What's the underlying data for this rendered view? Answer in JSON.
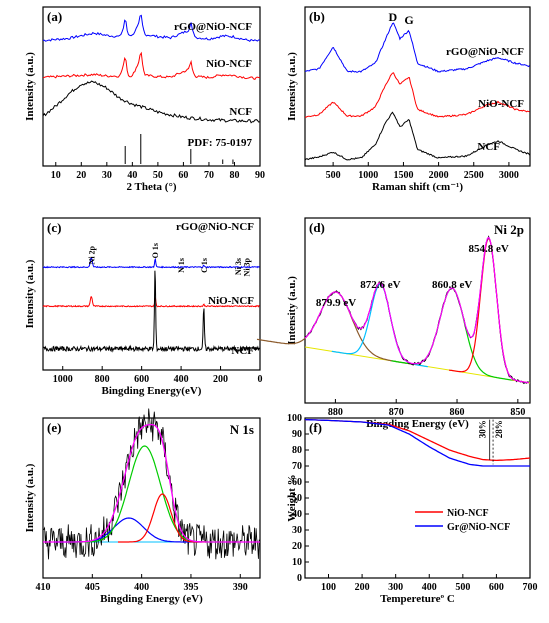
{
  "chart_data": [
    {
      "type": "line",
      "panel_label": "(a)",
      "xlabel": "2 Theta (°)",
      "ylabel": "Intensity (a.u.)",
      "xlim": [
        5,
        90
      ],
      "xticks": [
        "10",
        "20",
        "30",
        "40",
        "50",
        "60",
        "70",
        "80",
        "90"
      ],
      "series": [
        {
          "name": "rGO@NiO-NCF",
          "color": "#0000ff",
          "x": [
            5,
            15,
            25,
            30,
            35,
            37.2,
            38.5,
            40,
            43.3,
            45,
            50,
            55,
            62.9,
            65,
            70,
            75.4,
            79.4,
            85,
            90
          ],
          "y": [
            0.05,
            0.12,
            0.3,
            0.22,
            0.18,
            0.55,
            0.25,
            0.22,
            0.7,
            0.25,
            0.18,
            0.14,
            0.42,
            0.15,
            0.1,
            0.2,
            0.18,
            0.06,
            0.03
          ]
        },
        {
          "name": "NiO-NCF",
          "color": "#ff0000",
          "x": [
            5,
            15,
            25,
            30,
            35,
            37.2,
            38.5,
            40,
            43.3,
            45,
            50,
            55,
            62.9,
            65,
            70,
            75.4,
            79.4,
            85,
            90
          ],
          "y": [
            0.05,
            0.1,
            0.15,
            0.1,
            0.1,
            0.55,
            0.12,
            0.1,
            0.7,
            0.12,
            0.08,
            0.06,
            0.35,
            0.08,
            0.05,
            0.14,
            0.12,
            0.04,
            0.02
          ]
        },
        {
          "name": "NCF",
          "color": "#000000",
          "x": [
            5,
            10,
            15,
            20,
            25,
            30,
            35,
            40,
            45,
            50,
            55,
            60,
            70,
            80,
            90
          ],
          "y": [
            0.15,
            0.4,
            0.7,
            0.95,
            1.0,
            0.85,
            0.6,
            0.45,
            0.35,
            0.25,
            0.18,
            0.12,
            0.06,
            0.03,
            0.02
          ]
        }
      ],
      "reference": {
        "label": "PDF: 75-0197",
        "x": [
          37.2,
          43.3,
          62.9,
          75.4,
          79.4
        ],
        "height": [
          0.6,
          1.0,
          0.5,
          0.15,
          0.15
        ]
      }
    },
    {
      "type": "line",
      "panel_label": "(b)",
      "xlabel": "Raman shift (cm⁻¹)",
      "ylabel": "Intensity (a.u.)",
      "xlim": [
        100,
        3300
      ],
      "xticks": [
        "500",
        "1000",
        "1500",
        "2000",
        "2500",
        "3000"
      ],
      "annotations": [
        "D",
        "G"
      ],
      "series": [
        {
          "name": "rGO@NiO-NCF",
          "color": "#0000ff",
          "x": [
            100,
            300,
            500,
            700,
            900,
            1100,
            1250,
            1350,
            1450,
            1580,
            1700,
            2000,
            2400,
            2700,
            2850,
            3100,
            3300
          ],
          "y": [
            0.1,
            0.15,
            0.55,
            0.1,
            0.1,
            0.25,
            0.7,
            1.0,
            0.7,
            0.85,
            0.25,
            0.1,
            0.15,
            0.3,
            0.35,
            0.25,
            0.2
          ]
        },
        {
          "name": "NiO-NCF",
          "color": "#ff0000",
          "x": [
            100,
            300,
            500,
            700,
            900,
            1100,
            1250,
            1350,
            1450,
            1580,
            1700,
            2000,
            2400,
            2700,
            2850,
            3100,
            3300
          ],
          "y": [
            0.1,
            0.15,
            0.4,
            0.12,
            0.12,
            0.3,
            0.75,
            1.0,
            0.75,
            0.9,
            0.25,
            0.1,
            0.15,
            0.35,
            0.4,
            0.25,
            0.2
          ]
        },
        {
          "name": "NCF",
          "color": "#000000",
          "x": [
            100,
            300,
            500,
            700,
            900,
            1100,
            1250,
            1350,
            1450,
            1580,
            1700,
            2000,
            2400,
            2700,
            2850,
            3100,
            3300
          ],
          "y": [
            0.05,
            0.1,
            0.2,
            0.05,
            0.08,
            0.35,
            0.8,
            1.0,
            0.7,
            0.85,
            0.25,
            0.08,
            0.12,
            0.35,
            0.42,
            0.25,
            0.15
          ]
        }
      ]
    },
    {
      "type": "line",
      "panel_label": "(c)",
      "xlabel": "Bingding Energy(eV)",
      "ylabel": "Intensity (a.u.)",
      "xlim": [
        1100,
        0
      ],
      "xticks": [
        "1000",
        "800",
        "600",
        "400",
        "200",
        "0"
      ],
      "peak_labels": [
        "Ni 2p",
        "O 1s",
        "N 1s",
        "C 1s",
        "Ni 3s",
        "Ni 3p"
      ],
      "series": [
        {
          "name": "rGO@NiO-NCF",
          "color": "#0000ff",
          "x": [
            1100,
            1000,
            950,
            900,
            870,
            855,
            840,
            800,
            760,
            700,
            640,
            600,
            560,
            531,
            525,
            500,
            420,
            400,
            300,
            285,
            270,
            200,
            112,
            100,
            68,
            60,
            0
          ],
          "y": [
            0.95,
            0.9,
            0.82,
            0.85,
            0.8,
            1.25,
            0.75,
            0.62,
            0.58,
            0.5,
            0.42,
            0.35,
            0.25,
            0.6,
            0.2,
            0.15,
            0.1,
            0.12,
            0.05,
            0.12,
            0.03,
            0.02,
            0.08,
            0.01,
            0.08,
            0.0,
            0.0
          ]
        },
        {
          "name": "NiO-NCF",
          "color": "#ff0000",
          "x": [
            1100,
            1000,
            950,
            900,
            870,
            855,
            840,
            800,
            760,
            700,
            640,
            600,
            560,
            531,
            525,
            500,
            420,
            400,
            300,
            285,
            270,
            200,
            112,
            100,
            68,
            60,
            0
          ],
          "y": [
            0.9,
            0.88,
            0.75,
            0.78,
            0.72,
            1.15,
            0.68,
            0.55,
            0.5,
            0.45,
            0.38,
            0.3,
            0.22,
            0.55,
            0.18,
            0.12,
            0.08,
            0.1,
            0.04,
            0.1,
            0.02,
            0.02,
            0.06,
            0.01,
            0.06,
            0.0,
            0.0
          ]
        },
        {
          "name": "NCF",
          "color": "#000000",
          "x": [
            1100,
            1000,
            980,
            950,
            800,
            700,
            600,
            540,
            532,
            520,
            500,
            400,
            300,
            285,
            270,
            200,
            100,
            0
          ],
          "y": [
            0.1,
            0.12,
            0.2,
            0.15,
            0.1,
            0.08,
            0.07,
            0.1,
            1.0,
            0.12,
            0.08,
            0.06,
            0.04,
            0.5,
            0.02,
            0.01,
            0.01,
            0.0
          ]
        }
      ]
    },
    {
      "type": "line",
      "panel_label": "(d)",
      "title": "Ni 2p",
      "xlabel": "Bingding Energy (eV)",
      "ylabel": "Intensity (a.u.)",
      "xlim": [
        885,
        848
      ],
      "xticks": [
        "880",
        "870",
        "860",
        "850"
      ],
      "peak_labels": [
        "879.9 eV",
        "872.6 eV",
        "860.8 eV",
        "854.8 eV"
      ],
      "peaks": [
        {
          "center": 879.9,
          "height": 0.4,
          "width": 2.6,
          "color": "#8b5a2b"
        },
        {
          "center": 872.6,
          "height": 0.5,
          "width": 1.6,
          "color": "#00c0ff"
        },
        {
          "center": 860.8,
          "height": 0.55,
          "width": 2.0,
          "color": "#00cc00"
        },
        {
          "center": 854.8,
          "height": 0.92,
          "width": 1.3,
          "color": "#ff0000"
        }
      ],
      "background": {
        "color": "#e6e600",
        "x": [
          885,
          848
        ],
        "y": [
          0.32,
          0.08
        ]
      },
      "envelope_color": "#ff00ff",
      "raw_color": "#000000"
    },
    {
      "type": "line",
      "panel_label": "(e)",
      "title": "N 1s",
      "xlabel": "Bingding Energy (eV)",
      "ylabel": "Intensity (a.u.)",
      "xlim": [
        410,
        388
      ],
      "xticks": [
        "410",
        "405",
        "400",
        "395",
        "390"
      ],
      "peaks": [
        {
          "center": 401.3,
          "height": 0.15,
          "width": 1.5,
          "color": "#0000ff"
        },
        {
          "center": 399.7,
          "height": 0.6,
          "width": 1.6,
          "color": "#00cc00"
        },
        {
          "center": 397.9,
          "height": 0.3,
          "width": 0.9,
          "color": "#ff0000"
        }
      ],
      "background": {
        "color": "#00c0ff",
        "y": 0.1
      },
      "envelope_color": "#ff00ff",
      "raw_color": "#000000"
    },
    {
      "type": "line",
      "panel_label": "(f)",
      "xlabel": "Temperetureº C",
      "ylabel": "Weight %",
      "xlim": [
        30,
        700
      ],
      "ylim": [
        0,
        100
      ],
      "xticks": [
        "100",
        "200",
        "300",
        "400",
        "500",
        "600",
        "700"
      ],
      "yticks": [
        "0",
        "10",
        "20",
        "30",
        "40",
        "50",
        "60",
        "70",
        "80",
        "90",
        "100"
      ],
      "annotations": [
        "30%",
        "28%"
      ],
      "series": [
        {
          "name": "NiO-NCF",
          "color": "#ff0000",
          "x": [
            30,
            100,
            200,
            280,
            340,
            400,
            460,
            520,
            560,
            600,
            650,
            700
          ],
          "y": [
            99,
            98.5,
            97.5,
            96,
            92,
            86,
            80,
            76,
            74,
            73.5,
            74,
            75
          ]
        },
        {
          "name": "Gr@NiO-NCF",
          "color": "#0000ff",
          "x": [
            30,
            100,
            200,
            280,
            340,
            400,
            460,
            520,
            560,
            600,
            650,
            700
          ],
          "y": [
            99,
            98.5,
            97.5,
            95.5,
            90,
            82,
            75,
            71,
            70,
            70,
            70,
            70
          ]
        }
      ],
      "legend_position": "center-right"
    }
  ]
}
